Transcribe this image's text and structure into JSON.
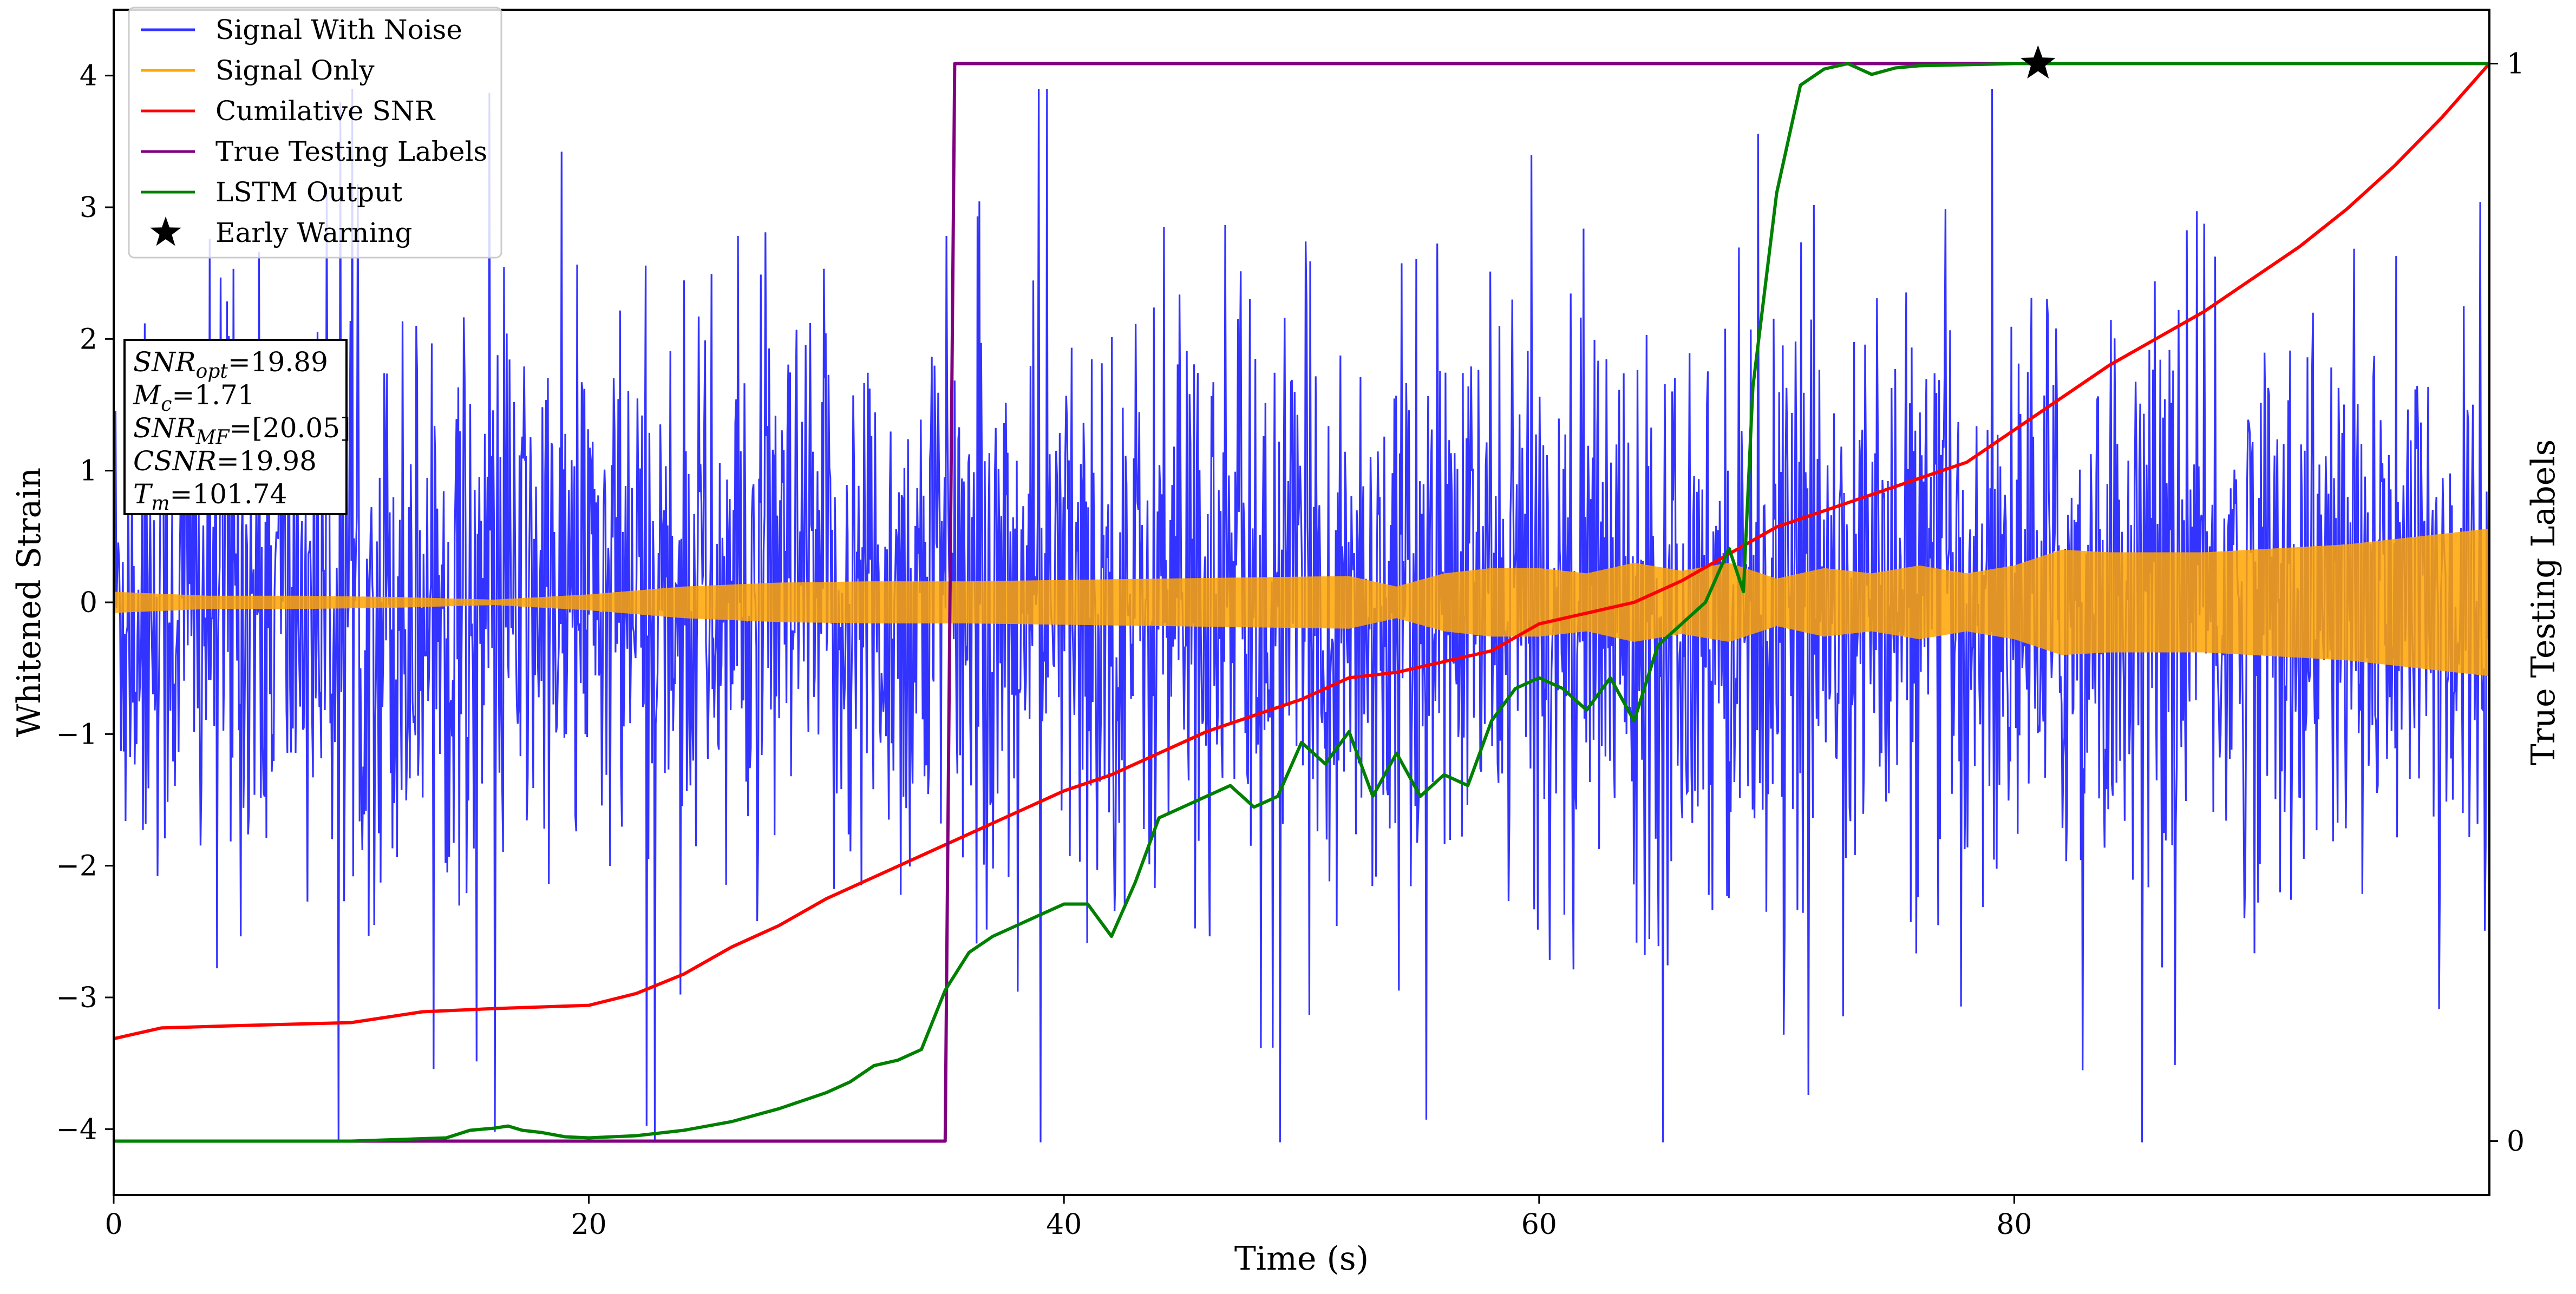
{
  "chart_data": {
    "type": "line",
    "xlabel": "Time (s)",
    "ylabel": "Whitened Strain",
    "y2label": "True Testing Labels",
    "xlim": [
      0,
      100
    ],
    "ylim": [
      -4.5,
      4.5
    ],
    "y2lim": [
      -0.05,
      1.05
    ],
    "x_ticks": [
      0,
      20,
      40,
      60,
      80
    ],
    "y_ticks": [
      -4,
      -3,
      -2,
      -1,
      0,
      1,
      2,
      3,
      4
    ],
    "y_tick_labels": [
      "−4",
      "−3",
      "−2",
      "−1",
      "0",
      "1",
      "2",
      "3",
      "4"
    ],
    "y2_ticks": [
      0,
      1
    ],
    "grid": false,
    "legend_position": "top-left",
    "colors": {
      "signal_with_noise": "#3333ff",
      "signal_only": "#ffa500",
      "cumulative_snr": "#ff0000",
      "true_labels": "#800080",
      "lstm_output": "#008000",
      "early_warning": "#000000"
    },
    "legend": [
      {
        "label": "Signal With Noise",
        "color": "#3333ff",
        "kind": "line"
      },
      {
        "label": "Signal Only",
        "color": "#ffa500",
        "kind": "line"
      },
      {
        "label": "Cumilative SNR",
        "color": "#ff0000",
        "kind": "line"
      },
      {
        "label": "True Testing Labels",
        "color": "#800080",
        "kind": "line"
      },
      {
        "label": "LSTM Output",
        "color": "#008000",
        "kind": "line"
      },
      {
        "label": "Early Warning",
        "color": "#000000",
        "kind": "star"
      }
    ],
    "info_box": [
      {
        "sym": "SNR",
        "sub": "opt",
        "rest": "=19.89"
      },
      {
        "sym": "M",
        "sub": "c",
        "rest": "=1.71"
      },
      {
        "sym": "SNR",
        "sub": "MF",
        "rest": "=[20.05]"
      },
      {
        "sym": "CSNR",
        "sub": "",
        "rest": "=19.98"
      },
      {
        "sym": "T",
        "sub": "m",
        "rest": "=101.74"
      }
    ],
    "series": [
      {
        "name": "Signal With Noise",
        "axis": "left",
        "kind": "noise-band",
        "x_range": [
          0,
          100
        ],
        "typical_amplitude": 1.1,
        "peak_max": 3.9,
        "peak_min": -4.1
      },
      {
        "name": "Signal Only",
        "axis": "left",
        "kind": "envelope",
        "x": [
          0,
          4,
          8,
          12,
          16,
          20,
          24,
          28,
          32,
          36,
          40,
          44,
          48,
          52,
          54,
          56,
          58,
          60,
          62,
          64,
          66,
          68,
          70,
          72,
          74,
          76,
          78,
          80,
          82,
          84,
          86,
          88,
          90,
          92,
          94,
          96,
          98,
          100
        ],
        "amplitude": [
          0.08,
          0.05,
          0.05,
          0.04,
          0.02,
          0.06,
          0.12,
          0.15,
          0.16,
          0.16,
          0.17,
          0.18,
          0.19,
          0.2,
          0.12,
          0.22,
          0.26,
          0.26,
          0.22,
          0.3,
          0.24,
          0.3,
          0.18,
          0.26,
          0.22,
          0.28,
          0.22,
          0.28,
          0.4,
          0.38,
          0.38,
          0.38,
          0.4,
          0.42,
          0.44,
          0.48,
          0.52,
          0.56
        ]
      },
      {
        "name": "Cumilative SNR",
        "axis": "right",
        "x": [
          0,
          2,
          5,
          10,
          13,
          16,
          20,
          22,
          24,
          26,
          28,
          30,
          32,
          34,
          36,
          38,
          40,
          42,
          44,
          46,
          48,
          50,
          52,
          54,
          56,
          58,
          60,
          62,
          64,
          66,
          68,
          70,
          72,
          74,
          76,
          78,
          80,
          82,
          84,
          86,
          88,
          90,
          92,
          94,
          96,
          98,
          100
        ],
        "y": [
          0.095,
          0.105,
          0.107,
          0.11,
          0.12,
          0.123,
          0.126,
          0.137,
          0.155,
          0.18,
          0.2,
          0.225,
          0.245,
          0.265,
          0.285,
          0.305,
          0.325,
          0.34,
          0.36,
          0.38,
          0.395,
          0.41,
          0.43,
          0.435,
          0.445,
          0.455,
          0.48,
          0.49,
          0.5,
          0.52,
          0.545,
          0.57,
          0.585,
          0.6,
          0.615,
          0.63,
          0.66,
          0.69,
          0.72,
          0.745,
          0.77,
          0.8,
          0.83,
          0.865,
          0.905,
          0.95,
          1.0
        ]
      },
      {
        "name": "True Testing Labels",
        "axis": "right",
        "x": [
          0,
          35,
          35.4,
          100
        ],
        "y": [
          0,
          0,
          1,
          1
        ]
      },
      {
        "name": "LSTM Output",
        "axis": "right",
        "x": [
          0,
          10,
          14,
          15,
          16,
          16.6,
          17.2,
          18,
          19,
          20,
          22,
          24,
          26,
          28,
          30,
          31,
          32,
          33,
          34,
          35,
          36,
          37,
          38,
          39,
          40,
          41,
          42,
          43,
          44,
          45,
          46,
          47,
          48,
          49,
          50,
          51,
          52,
          53,
          54,
          55,
          56,
          57,
          58,
          59,
          60,
          61,
          62,
          63,
          64,
          65,
          66,
          67,
          68,
          68.6,
          69,
          70,
          70.6,
          71,
          72,
          73,
          74,
          75,
          76,
          78,
          80,
          81,
          82,
          84,
          100
        ],
        "y": [
          0,
          0,
          0.003,
          0.01,
          0.012,
          0.014,
          0.01,
          0.008,
          0.004,
          0.003,
          0.005,
          0.01,
          0.018,
          0.03,
          0.045,
          0.055,
          0.07,
          0.075,
          0.085,
          0.14,
          0.175,
          0.19,
          0.2,
          0.21,
          0.22,
          0.22,
          0.19,
          0.24,
          0.3,
          0.31,
          0.32,
          0.33,
          0.31,
          0.32,
          0.37,
          0.35,
          0.38,
          0.32,
          0.36,
          0.32,
          0.34,
          0.33,
          0.39,
          0.42,
          0.43,
          0.42,
          0.4,
          0.43,
          0.39,
          0.46,
          0.48,
          0.5,
          0.55,
          0.51,
          0.7,
          0.88,
          0.94,
          0.98,
          0.995,
          1.0,
          0.99,
          0.996,
          0.998,
          0.999,
          1.0,
          1.0,
          1.0,
          1.0,
          1.0
        ]
      },
      {
        "name": "Early Warning",
        "axis": "right",
        "kind": "marker",
        "x": [
          81
        ],
        "y": [
          1.0
        ]
      }
    ]
  }
}
